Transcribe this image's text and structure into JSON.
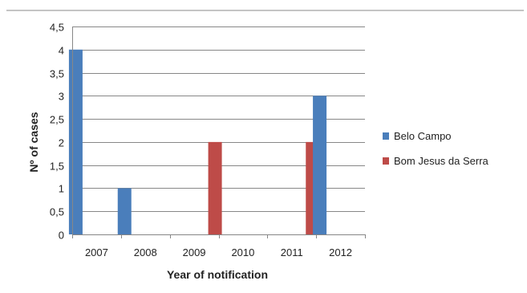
{
  "chart_data": {
    "type": "bar",
    "categories": [
      "2007",
      "2008",
      "2009",
      "2010",
      "2011",
      "2012"
    ],
    "series": [
      {
        "name": "Belo Campo",
        "color": "#4a7ebb",
        "values": [
          4,
          1,
          0,
          0,
          0,
          3
        ]
      },
      {
        "name": "Bom Jesus da Serra",
        "color": "#be4b48",
        "values": [
          0,
          0,
          2,
          0,
          2,
          0
        ]
      }
    ],
    "title": "",
    "xlabel": "Year of notification",
    "ylabel": "Nº of cases",
    "ylim": [
      0,
      4.5
    ],
    "yticks": [
      "0",
      "0,5",
      "1",
      "1,5",
      "2",
      "2,5",
      "3",
      "3,5",
      "4",
      "4,5"
    ],
    "grid": true,
    "legend_position": "right"
  },
  "colors": {
    "grid": "#878787",
    "frame_top_line": "#888888"
  }
}
